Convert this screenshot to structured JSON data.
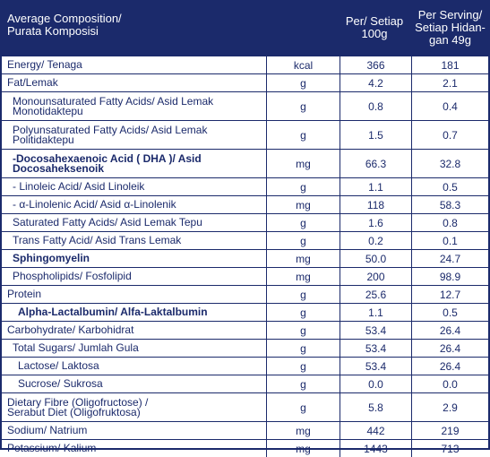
{
  "header": {
    "composition": "Average Composition/\nPurata Komposisi",
    "per100": "Per/ Setiap\n100g",
    "per_serving": "Per Serving/\nSetiap Hidan-\ngan 49g"
  },
  "rows": [
    {
      "name": "Energy/ Tenaga",
      "unit": "kcal",
      "per100": "366",
      "serving": "181"
    },
    {
      "name": "Fat/Lemak",
      "unit": "g",
      "per100": "4.2",
      "serving": "2.1"
    },
    {
      "name": "Monounsaturated Fatty Acids/ Asid Lemak\nMonotidaktepu",
      "unit": "g",
      "per100": "0.8",
      "serving": "0.4"
    },
    {
      "name": "Polyunsaturated Fatty Acids/ Asid Lemak\nPolitidaktepu",
      "unit": "g",
      "per100": "1.5",
      "serving": "0.7"
    },
    {
      "name": "-Docosahexaenoic Acid ( DHA )/ Asid\nDocosaheksenoik",
      "unit": "mg",
      "per100": "66.3",
      "serving": "32.8"
    },
    {
      "name": "- Linoleic Acid/ Asid Linoleik",
      "unit": "g",
      "per100": "1.1",
      "serving": "0.5"
    },
    {
      "name": "- α-Linolenic Acid/ Asid α-Linolenik",
      "unit": "mg",
      "per100": "118",
      "serving": "58.3"
    },
    {
      "name": "Saturated Fatty Acids/ Asid Lemak Tepu",
      "unit": "g",
      "per100": "1.6",
      "serving": "0.8"
    },
    {
      "name": "Trans Fatty Acid/ Asid Trans Lemak",
      "unit": "g",
      "per100": "0.2",
      "serving": "0.1"
    },
    {
      "name": "Sphingomyelin",
      "unit": "mg",
      "per100": "50.0",
      "serving": "24.7"
    },
    {
      "name": "Phospholipids/ Fosfolipid",
      "unit": "mg",
      "per100": "200",
      "serving": "98.9"
    },
    {
      "name": "Protein",
      "unit": "g",
      "per100": "25.6",
      "serving": "12.7"
    },
    {
      "name": "Alpha-Lactalbumin/ Alfa-Laktalbumin",
      "unit": "g",
      "per100": "1.1",
      "serving": "0.5"
    },
    {
      "name": "Carbohydrate/ Karbohidrat",
      "unit": "g",
      "per100": "53.4",
      "serving": "26.4"
    },
    {
      "name": "Total Sugars/ Jumlah Gula",
      "unit": "g",
      "per100": "53.4",
      "serving": "26.4"
    },
    {
      "name": "Lactose/ Laktosa",
      "unit": "g",
      "per100": "53.4",
      "serving": "26.4"
    },
    {
      "name": "Sucrose/ Sukrosa",
      "unit": "g",
      "per100": "0.0",
      "serving": "0.0"
    },
    {
      "name": "Dietary Fibre (Oligofructose) /\nSerabut Diet (Oligofruktosa)",
      "unit": "g",
      "per100": "5.8",
      "serving": "2.9"
    },
    {
      "name": "Sodium/ Natrium",
      "unit": "mg",
      "per100": "442",
      "serving": "219"
    },
    {
      "name": "Potassium/ Kalium",
      "unit": "mg",
      "per100": "1443",
      "serving": "713"
    }
  ],
  "colors": {
    "header_bg": "#1b2a6b",
    "text": "#1b2a6b",
    "border": "#1b2a6b"
  }
}
